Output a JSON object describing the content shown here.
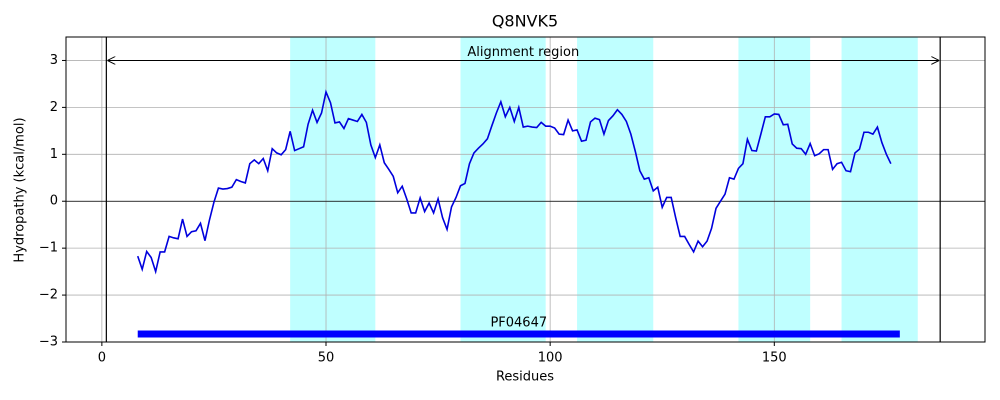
{
  "chart_data": {
    "type": "line",
    "title": "Q8NVK5",
    "xlabel": "Residues",
    "ylabel": "Hydropathy (kcal/mol)",
    "xlim": [
      -8,
      197
    ],
    "ylim": [
      -3,
      3.5
    ],
    "xticks": [
      0,
      50,
      100,
      150
    ],
    "yticks": [
      {
        "value": -3,
        "label": "−3"
      },
      {
        "value": -2,
        "label": "−2"
      },
      {
        "value": -1,
        "label": "−1"
      },
      0,
      1,
      2,
      3
    ],
    "grid": true,
    "hline": 0,
    "spans": [
      [
        42,
        61
      ],
      [
        80,
        99
      ],
      [
        106,
        123
      ],
      [
        142,
        158
      ],
      [
        165,
        182
      ]
    ],
    "span_color": "#bfffff",
    "alignment_region": {
      "label": "Alignment region",
      "start": 1,
      "end": 187,
      "y": 3
    },
    "domain": {
      "label": "PF04647",
      "start": 8,
      "end": 178,
      "y": -2.83,
      "color": "#0000ff"
    },
    "x": [
      8,
      9,
      10,
      11,
      12,
      13,
      14,
      15,
      16,
      17,
      18,
      19,
      20,
      21,
      22,
      23,
      24,
      25,
      26,
      27,
      28,
      29,
      30,
      31,
      32,
      33,
      34,
      35,
      36,
      37,
      38,
      39,
      40,
      41,
      42,
      43,
      44,
      45,
      46,
      47,
      48,
      49,
      50,
      51,
      52,
      53,
      54,
      55,
      56,
      57,
      58,
      59,
      60,
      61,
      62,
      63,
      64,
      65,
      66,
      67,
      68,
      69,
      70,
      71,
      72,
      73,
      74,
      75,
      76,
      77,
      78,
      79,
      80,
      81,
      82,
      83,
      84,
      85,
      86,
      87,
      88,
      89,
      90,
      91,
      92,
      93,
      94,
      95,
      96,
      97,
      98,
      99,
      100,
      101,
      102,
      103,
      104,
      105,
      106,
      107,
      108,
      109,
      110,
      111,
      112,
      113,
      114,
      115,
      116,
      117,
      118,
      119,
      120,
      121,
      122,
      123,
      124,
      125,
      126,
      127,
      128,
      129,
      130,
      131,
      132,
      133,
      134,
      135,
      136,
      137,
      138,
      139,
      140,
      141,
      142,
      143,
      144,
      145,
      146,
      147,
      148,
      149,
      150,
      151,
      152,
      153,
      154,
      155,
      156,
      157,
      158,
      159,
      160,
      161,
      162,
      163,
      164,
      165,
      166,
      167,
      168,
      169,
      170,
      171,
      172,
      173,
      174,
      175,
      176
    ],
    "series": [
      {
        "color": "#0000dd",
        "values": [
          -1.17,
          -1.45,
          -1.07,
          -1.2,
          -1.5,
          -1.08,
          -1.08,
          -0.75,
          -0.78,
          -0.8,
          -0.38,
          -0.75,
          -0.65,
          -0.63,
          -0.47,
          -0.84,
          -0.4,
          -0.02,
          0.28,
          0.26,
          0.27,
          0.3,
          0.46,
          0.42,
          0.39,
          0.8,
          0.88,
          0.8,
          0.91,
          0.65,
          1.12,
          1.03,
          0.99,
          1.1,
          1.49,
          1.08,
          1.12,
          1.16,
          1.64,
          1.94,
          1.68,
          1.88,
          2.33,
          2.1,
          1.67,
          1.69,
          1.55,
          1.76,
          1.73,
          1.7,
          1.85,
          1.68,
          1.2,
          0.93,
          1.2,
          0.82,
          0.68,
          0.53,
          0.18,
          0.32,
          0.05,
          -0.25,
          -0.25,
          0.07,
          -0.22,
          -0.04,
          -0.25,
          0.05,
          -0.35,
          -0.6,
          -0.12,
          0.08,
          0.33,
          0.38,
          0.8,
          1.03,
          1.13,
          1.22,
          1.33,
          1.61,
          1.88,
          2.12,
          1.8,
          2.0,
          1.7,
          2.0,
          1.58,
          1.6,
          1.58,
          1.57,
          1.68,
          1.6,
          1.6,
          1.56,
          1.43,
          1.42,
          1.73,
          1.5,
          1.52,
          1.28,
          1.3,
          1.69,
          1.77,
          1.74,
          1.43,
          1.72,
          1.82,
          1.95,
          1.85,
          1.7,
          1.43,
          1.06,
          0.65,
          0.47,
          0.5,
          0.22,
          0.3,
          -0.13,
          0.08,
          0.08,
          -0.35,
          -0.75,
          -0.75,
          -0.92,
          -1.08,
          -0.85,
          -0.97,
          -0.85,
          -0.58,
          -0.15,
          0.0,
          0.15,
          0.5,
          0.47,
          0.7,
          0.8,
          1.32,
          1.08,
          1.07,
          1.43,
          1.8,
          1.8,
          1.86,
          1.85,
          1.63,
          1.64,
          1.22,
          1.13,
          1.12,
          1.0,
          1.23,
          0.97,
          1.01,
          1.1,
          1.1,
          0.68,
          0.8,
          0.83,
          0.65,
          0.63,
          1.03,
          1.11,
          1.47,
          1.47,
          1.43,
          1.58,
          1.25,
          1.0,
          0.8
        ]
      }
    ]
  }
}
